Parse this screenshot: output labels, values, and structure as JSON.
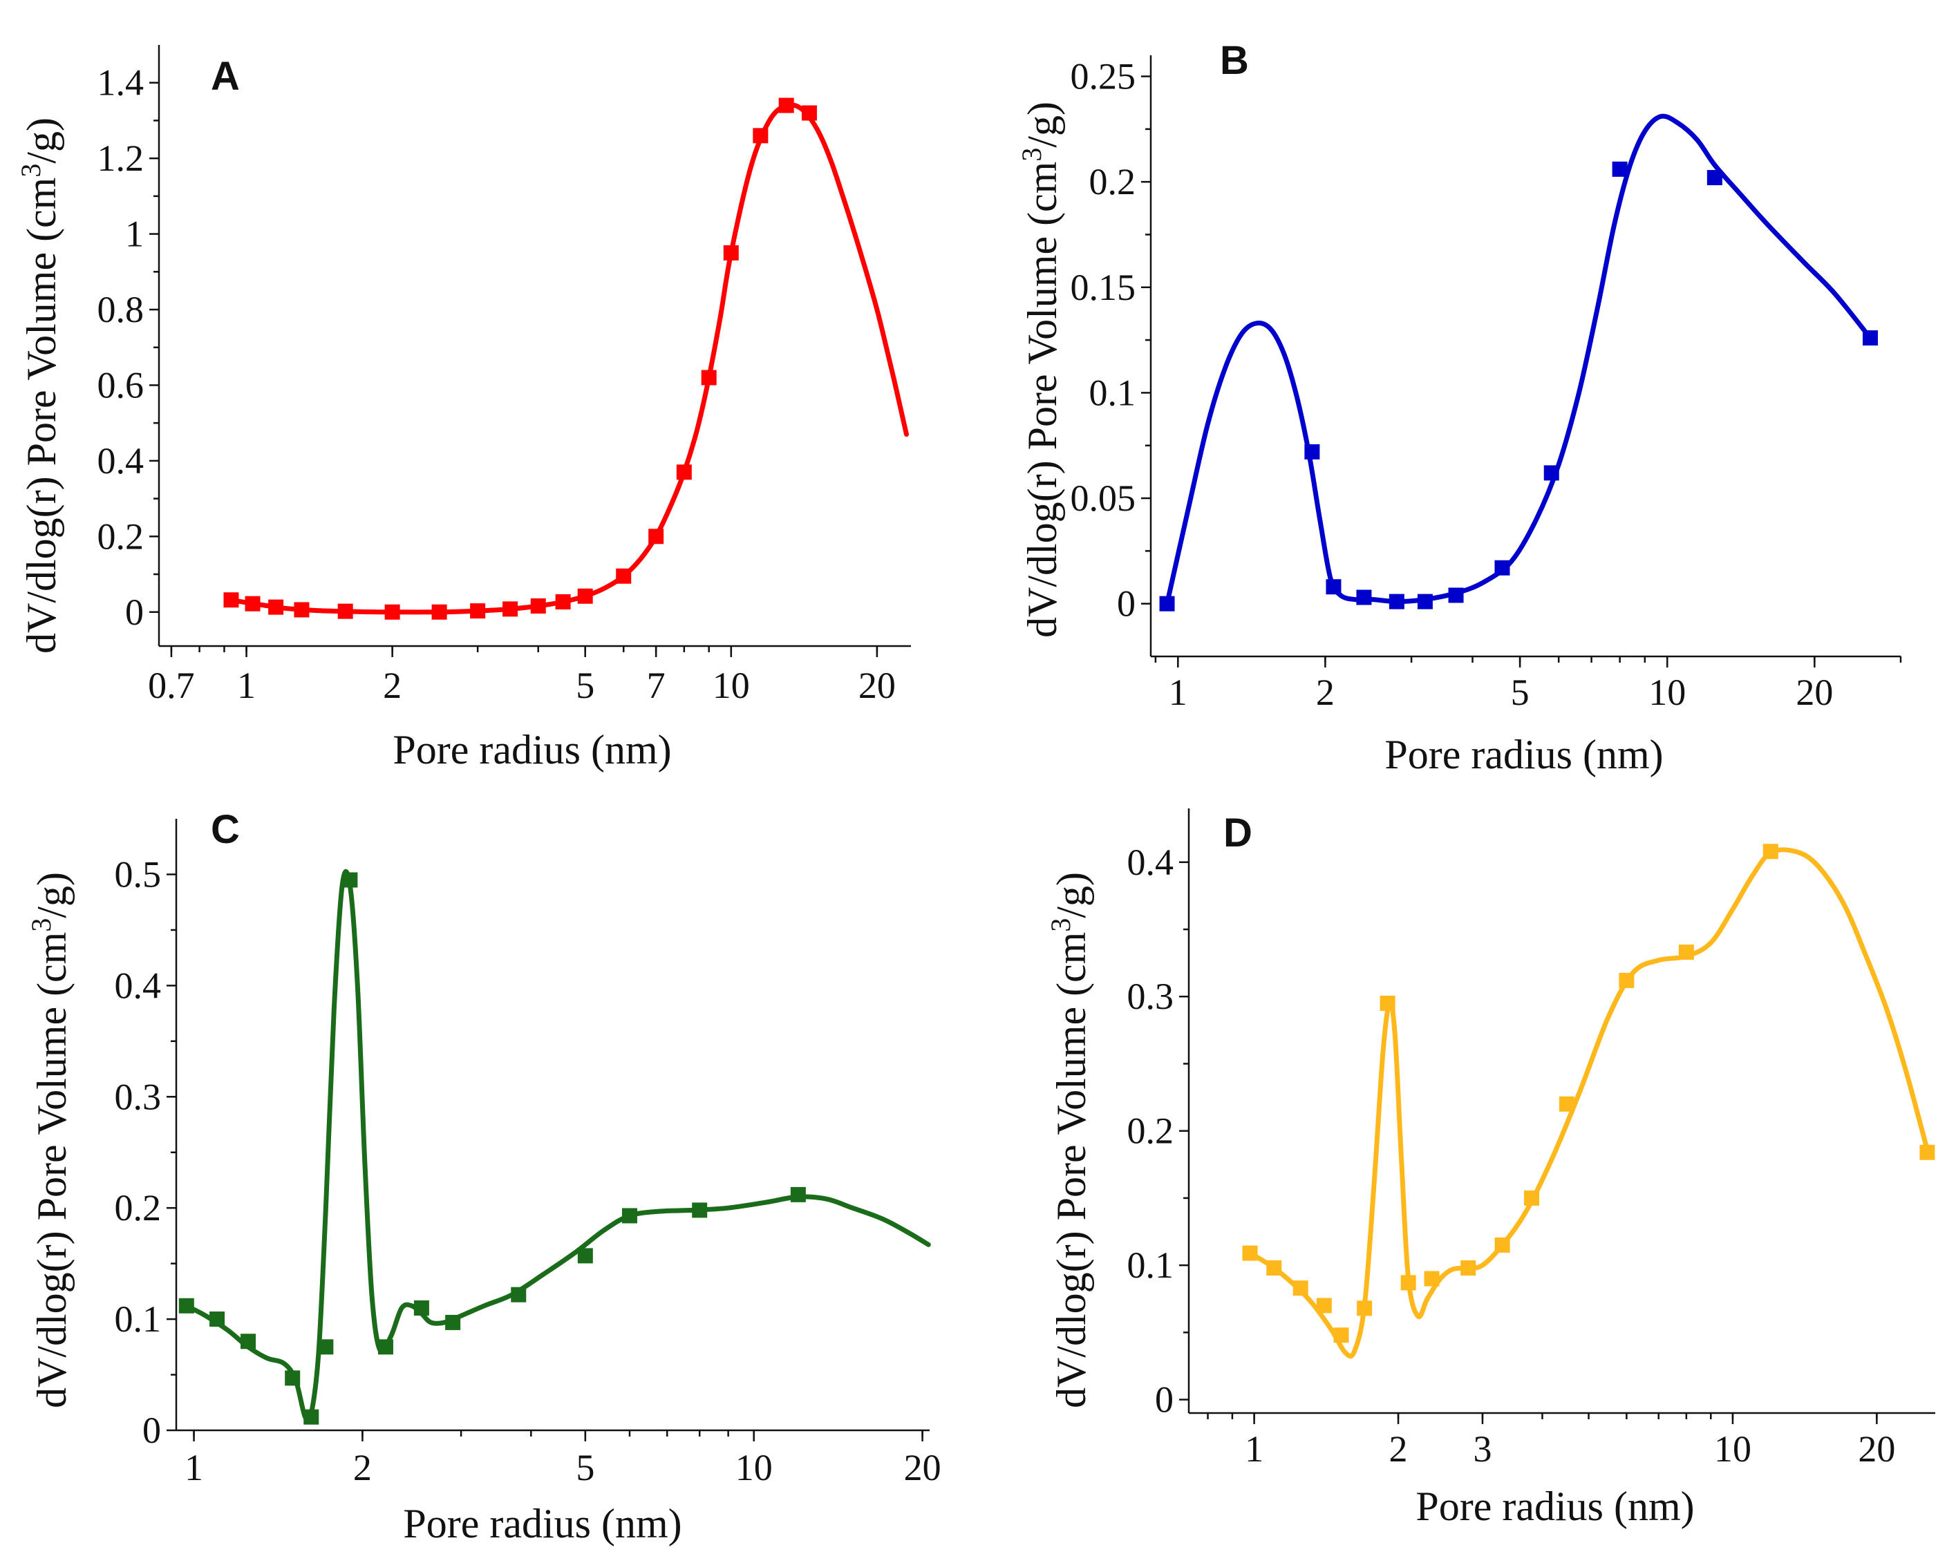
{
  "chart_data": [
    {
      "panel": "A",
      "type": "line",
      "xscale": "log",
      "xlabel": "Pore radius (nm)",
      "ylabel": "dV/dlog(r) Pore Volume (cm3/g)",
      "xlim": [
        0.66,
        23.5
      ],
      "ylim": [
        -0.09,
        1.5
      ],
      "xticks": [
        0.7,
        1,
        2,
        5,
        7,
        10,
        20
      ],
      "yticks": [
        0,
        0.2,
        0.4,
        0.6,
        0.8,
        1,
        1.2,
        1.4
      ],
      "ytick_labels": [
        "0",
        "0.2",
        "0.4",
        "0.6",
        "0.8",
        "1",
        "1.2",
        "1.4"
      ],
      "series": [
        {
          "name": "A",
          "color": "#ff0000",
          "x": [
            0.93,
            1.0,
            1.1,
            1.2,
            1.4,
            1.7,
            2.0,
            2.5,
            3.0,
            3.5,
            4.0,
            4.5,
            5.0,
            5.5,
            6.0,
            6.5,
            7.0,
            7.5,
            8.0,
            8.5,
            9.0,
            9.5,
            10.0,
            11.0,
            12.0,
            13.0,
            14.0,
            15.0,
            16.0,
            17.0,
            18.0,
            19.0,
            20.0,
            21.0,
            22.0,
            23.0
          ],
          "y": [
            0.032,
            0.025,
            0.017,
            0.01,
            0.004,
            0.001,
            0.0,
            0.0,
            0.003,
            0.008,
            0.016,
            0.027,
            0.042,
            0.064,
            0.095,
            0.14,
            0.2,
            0.28,
            0.37,
            0.48,
            0.62,
            0.78,
            0.95,
            1.18,
            1.3,
            1.34,
            1.33,
            1.28,
            1.2,
            1.1,
            1.0,
            0.9,
            0.8,
            0.69,
            0.58,
            0.47
          ],
          "markers_x": [
            0.93,
            1.03,
            1.15,
            1.3,
            1.6,
            2.0,
            2.5,
            3.0,
            3.5,
            4.0,
            4.5,
            5.0,
            6.0,
            7.0,
            8.0,
            9.0,
            10.0,
            11.5,
            13.0,
            14.5
          ],
          "markers_y": [
            0.032,
            0.022,
            0.013,
            0.006,
            0.002,
            0.0,
            0.0,
            0.003,
            0.008,
            0.016,
            0.027,
            0.042,
            0.095,
            0.2,
            0.37,
            0.62,
            0.95,
            1.26,
            1.34,
            1.32
          ]
        }
      ]
    },
    {
      "panel": "B",
      "type": "line",
      "xscale": "log",
      "xlabel": "Pore radius (nm)",
      "ylabel": "dV/dlog(r) Pore Volume (cm3/g)",
      "xlim": [
        0.88,
        30.0
      ],
      "ylim": [
        -0.025,
        0.26
      ],
      "xticks": [
        1,
        2,
        5,
        10,
        20
      ],
      "yticks": [
        0,
        0.05,
        0.1,
        0.15,
        0.2,
        0.25
      ],
      "ytick_labels": [
        "0",
        "0.05",
        "0.1",
        "0.15",
        "0.2",
        "0.25"
      ],
      "series": [
        {
          "name": "B",
          "color": "#0000cc",
          "x": [
            0.95,
            1.05,
            1.15,
            1.25,
            1.35,
            1.45,
            1.55,
            1.65,
            1.75,
            1.85,
            1.95,
            2.05,
            2.15,
            2.3,
            2.5,
            2.8,
            3.2,
            3.7,
            4.2,
            4.8,
            5.4,
            6.0,
            6.6,
            7.2,
            7.8,
            8.4,
            9.0,
            9.7,
            10.5,
            11.5,
            12.5,
            14.0,
            16.0,
            19.0,
            22.0,
            26.0
          ],
          "y": [
            0.0,
            0.045,
            0.085,
            0.112,
            0.128,
            0.133,
            0.13,
            0.118,
            0.098,
            0.072,
            0.04,
            0.012,
            0.004,
            0.002,
            0.002,
            0.001,
            0.002,
            0.005,
            0.01,
            0.02,
            0.04,
            0.066,
            0.1,
            0.14,
            0.18,
            0.208,
            0.224,
            0.231,
            0.228,
            0.22,
            0.208,
            0.195,
            0.18,
            0.162,
            0.147,
            0.126
          ],
          "markers_x": [
            0.95,
            1.88,
            2.08,
            2.4,
            2.8,
            3.2,
            3.7,
            4.6,
            5.8,
            8.0,
            12.5,
            26.0
          ],
          "markers_y": [
            0.0,
            0.072,
            0.008,
            0.003,
            0.001,
            0.001,
            0.004,
            0.017,
            0.062,
            0.206,
            0.202,
            0.126
          ]
        }
      ]
    },
    {
      "panel": "C",
      "type": "line",
      "xscale": "log",
      "xlabel": "Pore radius (nm)",
      "ylabel": "dV/dlog(r) Pore Volume (cm3/g)",
      "xlim": [
        0.93,
        20.6
      ],
      "ylim": [
        0,
        0.55
      ],
      "xticks": [
        1,
        2,
        5,
        10,
        20
      ],
      "yticks": [
        0,
        0.1,
        0.2,
        0.3,
        0.4,
        0.5
      ],
      "ytick_labels": [
        "0",
        "0.1",
        "0.2",
        "0.3",
        "0.4",
        "0.5"
      ],
      "series": [
        {
          "name": "C",
          "color": "#1a6b1a",
          "x": [
            0.97,
            1.05,
            1.15,
            1.25,
            1.35,
            1.45,
            1.52,
            1.58,
            1.62,
            1.67,
            1.72,
            1.78,
            1.84,
            1.9,
            1.96,
            2.02,
            2.08,
            2.15,
            2.25,
            2.35,
            2.45,
            2.55,
            2.65,
            2.8,
            3.0,
            3.3,
            3.7,
            4.2,
            4.8,
            5.4,
            6.0,
            6.8,
            7.8,
            9.0,
            10.5,
            12.0,
            13.5,
            15.0,
            17.0,
            19.0,
            20.5
          ],
          "y": [
            0.112,
            0.103,
            0.09,
            0.075,
            0.065,
            0.06,
            0.045,
            0.012,
            0.015,
            0.07,
            0.2,
            0.38,
            0.49,
            0.49,
            0.4,
            0.24,
            0.12,
            0.072,
            0.085,
            0.11,
            0.112,
            0.105,
            0.097,
            0.097,
            0.103,
            0.112,
            0.122,
            0.14,
            0.16,
            0.18,
            0.193,
            0.197,
            0.198,
            0.2,
            0.205,
            0.21,
            0.208,
            0.2,
            0.19,
            0.177,
            0.167
          ],
          "markers_x": [
            0.97,
            1.1,
            1.25,
            1.5,
            1.62,
            1.72,
            1.9,
            2.2,
            2.55,
            2.9,
            3.8,
            5.0,
            6.0,
            8.0,
            12.0
          ],
          "markers_y": [
            0.112,
            0.1,
            0.08,
            0.047,
            0.012,
            0.075,
            0.495,
            0.075,
            0.11,
            0.097,
            0.122,
            0.157,
            0.193,
            0.198,
            0.212
          ]
        }
      ]
    },
    {
      "panel": "D",
      "type": "line",
      "xscale": "log",
      "xlabel": "Pore radius (nm)",
      "ylabel": "dV/dlog(r) Pore Volume (cm3/g)",
      "xlim": [
        0.73,
        26.5
      ],
      "ylim": [
        -0.01,
        0.44
      ],
      "xticks": [
        1,
        2,
        3,
        10,
        20
      ],
      "yticks": [
        0,
        0.1,
        0.2,
        0.3,
        0.4
      ],
      "ytick_labels": [
        "0",
        "0.1",
        "0.2",
        "0.3",
        "0.4"
      ],
      "series": [
        {
          "name": "D",
          "color": "#ffb81c",
          "x": [
            0.98,
            1.08,
            1.2,
            1.32,
            1.45,
            1.55,
            1.62,
            1.7,
            1.78,
            1.86,
            1.92,
            1.97,
            2.03,
            2.1,
            2.2,
            2.3,
            2.45,
            2.6,
            2.8,
            3.0,
            3.3,
            3.7,
            4.2,
            4.8,
            5.5,
            6.2,
            7.0,
            8.0,
            9.0,
            10.0,
            11.0,
            12.0,
            13.5,
            15.0,
            17.0,
            19.0,
            21.0,
            23.0,
            25.5
          ],
          "y": [
            0.109,
            0.1,
            0.087,
            0.072,
            0.052,
            0.035,
            0.036,
            0.07,
            0.16,
            0.26,
            0.295,
            0.27,
            0.18,
            0.09,
            0.062,
            0.075,
            0.09,
            0.097,
            0.098,
            0.1,
            0.115,
            0.14,
            0.18,
            0.23,
            0.285,
            0.318,
            0.327,
            0.33,
            0.34,
            0.365,
            0.39,
            0.407,
            0.408,
            0.398,
            0.37,
            0.33,
            0.29,
            0.245,
            0.186
          ],
          "markers_x": [
            0.98,
            1.1,
            1.25,
            1.4,
            1.52,
            1.7,
            1.9,
            2.1,
            2.35,
            2.8,
            3.3,
            3.8,
            4.5,
            6.0,
            8.0,
            12.0,
            25.5
          ],
          "markers_y": [
            0.109,
            0.098,
            0.083,
            0.07,
            0.048,
            0.068,
            0.295,
            0.087,
            0.09,
            0.098,
            0.115,
            0.15,
            0.22,
            0.312,
            0.333,
            0.408,
            0.184
          ]
        }
      ]
    }
  ],
  "panels": {
    "A": {
      "letter": "A",
      "xlabel": "Pore radius (nm)",
      "ylabel_main": "dV/dlog(r) Pore Volume (cm",
      "ylabel_sup": "3",
      "ylabel_end": "/g)"
    },
    "B": {
      "letter": "B",
      "xlabel": "Pore radius (nm)",
      "ylabel_main": "dV/dlog(r) Pore Volume (cm",
      "ylabel_sup": "3",
      "ylabel_end": "/g)"
    },
    "C": {
      "letter": "C",
      "xlabel": "Pore radius (nm)",
      "ylabel_main": "dV/dlog(r) Pore Volume (cm",
      "ylabel_sup": "3",
      "ylabel_end": "/g)"
    },
    "D": {
      "letter": "D",
      "xlabel": "Pore radius (nm)",
      "ylabel_main": "dV/dlog(r) Pore Volume (cm",
      "ylabel_sup": "3",
      "ylabel_end": "/g)"
    }
  }
}
